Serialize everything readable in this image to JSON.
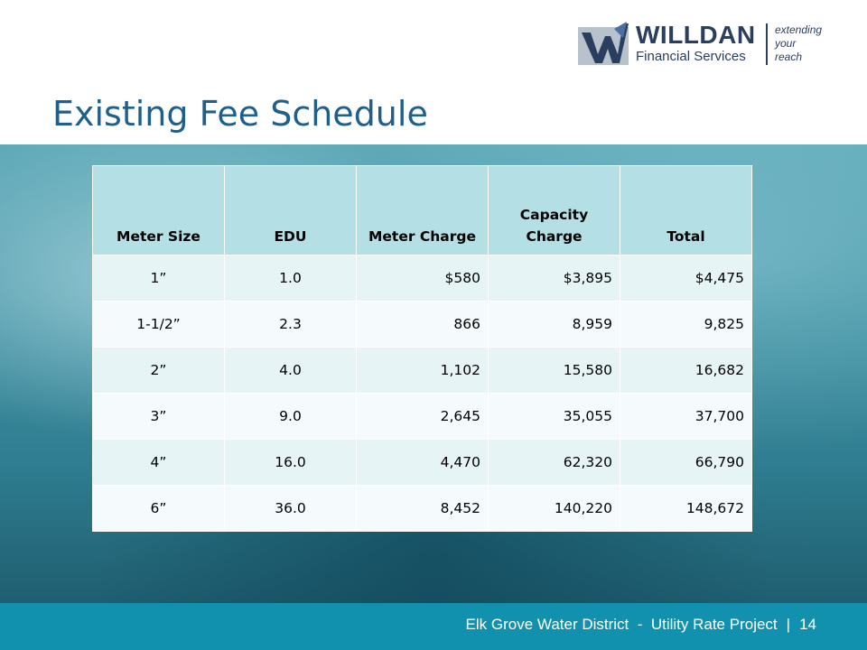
{
  "logo": {
    "name": "WILLDAN",
    "subtitle": "Financial Services",
    "tagline_line1": "extending",
    "tagline_line2": "your",
    "tagline_line3": "reach",
    "icon": "willdan-w-logo-icon"
  },
  "title": "Existing Fee Schedule",
  "table": {
    "headers": [
      "Meter Size",
      "EDU",
      "Meter Charge",
      "Capacity Charge",
      "Total"
    ],
    "rows": [
      [
        "1”",
        "1.0",
        "$580",
        "$3,895",
        "$4,475"
      ],
      [
        "1-1/2”",
        "2.3",
        "866",
        "8,959",
        "9,825"
      ],
      [
        "2”",
        "4.0",
        "1,102",
        "15,580",
        "16,682"
      ],
      [
        "3”",
        "9.0",
        "2,645",
        "35,055",
        "37,700"
      ],
      [
        "4”",
        "16.0",
        "4,470",
        "62,320",
        "66,790"
      ],
      [
        "6”",
        "36.0",
        "8,452",
        "140,220",
        "148,672"
      ]
    ]
  },
  "footer": {
    "project": "Elk Grove Water District  -  Utility Rate Project",
    "separator": "|",
    "page_number": "14"
  },
  "colors": {
    "title": "#1f5f8b",
    "footer_bar": "#1191ad",
    "header_cell": "#b4dfe4",
    "logo_text": "#2a3f5f"
  }
}
